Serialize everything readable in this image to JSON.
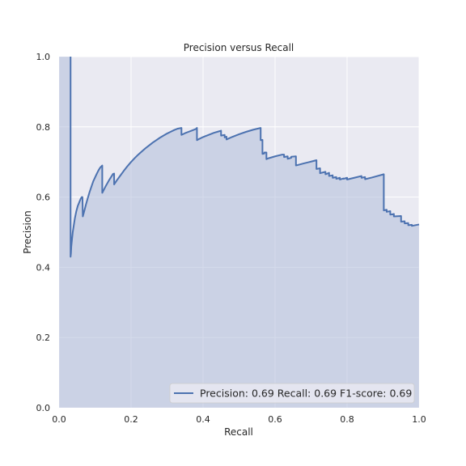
{
  "chart_data": {
    "type": "area",
    "title": "Precision versus Recall",
    "xlabel": "Recall",
    "ylabel": "Precision",
    "xlim": [
      0.0,
      1.0
    ],
    "ylim": [
      0.0,
      1.0
    ],
    "xticks": [
      "0.0",
      "0.2",
      "0.4",
      "0.6",
      "0.8",
      "1.0"
    ],
    "yticks": [
      "0.0",
      "0.2",
      "0.4",
      "0.6",
      "0.8",
      "1.0"
    ],
    "grid": true,
    "legend_position": "bottom-right",
    "legend_label": "Precision: 0.69  Recall: 0.69  F1-score: 0.69",
    "colors": {
      "line": "#4c72b0",
      "fill": "#b0bedb",
      "plot_bg": "#eaeaf2"
    },
    "series": [
      {
        "x": [
          0.032,
          0.032,
          0.033,
          0.034,
          0.036,
          0.038,
          0.041,
          0.044,
          0.048,
          0.052,
          0.056,
          0.06,
          0.063,
          0.065,
          0.066,
          0.07,
          0.075,
          0.08,
          0.085,
          0.09,
          0.095,
          0.1,
          0.105,
          0.11,
          0.115,
          0.12,
          0.12,
          0.125,
          0.13,
          0.135,
          0.14,
          0.145,
          0.15,
          0.153,
          0.153,
          0.16,
          0.17,
          0.18,
          0.19,
          0.2,
          0.21,
          0.22,
          0.23,
          0.24,
          0.25,
          0.26,
          0.27,
          0.28,
          0.29,
          0.3,
          0.31,
          0.32,
          0.33,
          0.34,
          0.34,
          0.35,
          0.36,
          0.37,
          0.38,
          0.383,
          0.383,
          0.39,
          0.4,
          0.41,
          0.42,
          0.43,
          0.44,
          0.45,
          0.45,
          0.46,
          0.46,
          0.465,
          0.465,
          0.48,
          0.5,
          0.52,
          0.54,
          0.56,
          0.56,
          0.565,
          0.565,
          0.57,
          0.57,
          0.576,
          0.576,
          0.58,
          0.6,
          0.62,
          0.625,
          0.625,
          0.635,
          0.635,
          0.645,
          0.645,
          0.658,
          0.658,
          0.68,
          0.7,
          0.715,
          0.715,
          0.72,
          0.725,
          0.725,
          0.74,
          0.74,
          0.75,
          0.75,
          0.76,
          0.76,
          0.77,
          0.77,
          0.78,
          0.78,
          0.79,
          0.79,
          0.8,
          0.8,
          0.82,
          0.84,
          0.84,
          0.85,
          0.85,
          0.87,
          0.902,
          0.902,
          0.91,
          0.91,
          0.92,
          0.92,
          0.93,
          0.93,
          0.95,
          0.95,
          0.96,
          0.96,
          0.97,
          0.97,
          0.98,
          0.98,
          1.0
        ],
        "y": [
          1.0,
          0.43,
          0.44,
          0.46,
          0.48,
          0.5,
          0.52,
          0.54,
          0.56,
          0.575,
          0.585,
          0.595,
          0.6,
          0.6,
          0.545,
          0.56,
          0.58,
          0.598,
          0.615,
          0.63,
          0.645,
          0.656,
          0.667,
          0.677,
          0.685,
          0.69,
          0.612,
          0.622,
          0.632,
          0.641,
          0.65,
          0.658,
          0.666,
          0.667,
          0.636,
          0.647,
          0.661,
          0.675,
          0.688,
          0.7,
          0.711,
          0.721,
          0.73,
          0.739,
          0.747,
          0.755,
          0.762,
          0.769,
          0.775,
          0.781,
          0.786,
          0.791,
          0.795,
          0.797,
          0.777,
          0.782,
          0.786,
          0.79,
          0.794,
          0.797,
          0.762,
          0.766,
          0.771,
          0.775,
          0.779,
          0.783,
          0.786,
          0.789,
          0.775,
          0.777,
          0.77,
          0.772,
          0.764,
          0.771,
          0.779,
          0.786,
          0.792,
          0.797,
          0.762,
          0.763,
          0.723,
          0.724,
          0.727,
          0.727,
          0.708,
          0.71,
          0.716,
          0.721,
          0.721,
          0.714,
          0.716,
          0.709,
          0.712,
          0.715,
          0.716,
          0.69,
          0.696,
          0.701,
          0.705,
          0.68,
          0.681,
          0.682,
          0.668,
          0.672,
          0.665,
          0.669,
          0.66,
          0.662,
          0.655,
          0.657,
          0.652,
          0.655,
          0.65,
          0.653,
          0.652,
          0.655,
          0.65,
          0.655,
          0.66,
          0.655,
          0.657,
          0.651,
          0.656,
          0.665,
          0.562,
          0.564,
          0.558,
          0.56,
          0.55,
          0.552,
          0.545,
          0.546,
          0.53,
          0.531,
          0.525,
          0.526,
          0.52,
          0.521,
          0.518,
          0.522
        ]
      }
    ]
  }
}
